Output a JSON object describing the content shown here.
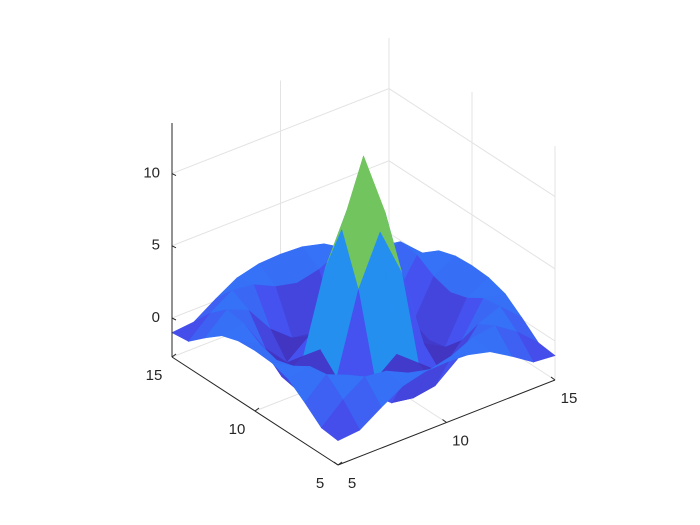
{
  "chart_data": {
    "type": "surface",
    "x": [
      5,
      6,
      7,
      8,
      9,
      10,
      11,
      12,
      13,
      14,
      15
    ],
    "y": [
      5,
      6,
      7,
      8,
      9,
      10,
      11,
      12,
      13,
      14,
      15
    ],
    "z": [
      [
        -1.01,
        -0.87,
        0.12,
        1.02,
        1.4,
        1.48,
        1.4,
        1.02,
        0.12,
        -0.87,
        -1.01
      ],
      [
        -0.87,
        0.48,
        1.48,
        1.29,
        0.57,
        0.22,
        0.57,
        1.29,
        1.48,
        0.48,
        -0.87
      ],
      [
        0.12,
        1.48,
        0.85,
        -1.03,
        -2.24,
        -2.49,
        -2.24,
        -1.03,
        0.85,
        1.48,
        0.12
      ],
      [
        1.02,
        1.29,
        -1.03,
        -2.61,
        -1.41,
        -0.22,
        -1.41,
        -2.61,
        -1.03,
        1.29,
        1.02
      ],
      [
        1.4,
        0.57,
        -2.24,
        -1.41,
        4.08,
        7.5,
        4.08,
        -1.41,
        -2.24,
        0.57,
        1.4
      ],
      [
        1.48,
        0.22,
        -2.49,
        -0.22,
        7.5,
        12,
        7.5,
        -0.22,
        -2.49,
        0.22,
        1.48
      ],
      [
        1.4,
        0.57,
        -2.24,
        -1.41,
        4.08,
        7.5,
        4.08,
        -1.41,
        -2.24,
        0.57,
        1.4
      ],
      [
        1.02,
        1.29,
        -1.03,
        -2.61,
        -1.41,
        -0.22,
        -1.41,
        -2.61,
        -1.03,
        1.29,
        1.02
      ],
      [
        0.12,
        1.48,
        0.85,
        -1.03,
        -2.24,
        -2.49,
        -2.24,
        -1.03,
        0.85,
        1.48,
        0.12
      ],
      [
        -0.87,
        0.48,
        1.48,
        1.29,
        0.57,
        0.22,
        0.57,
        1.29,
        1.48,
        0.48,
        -0.87
      ],
      [
        -1.01,
        -0.87,
        0.12,
        1.02,
        1.4,
        1.48,
        1.4,
        1.02,
        0.12,
        -0.87,
        -1.01
      ]
    ],
    "xlim": [
      5,
      15
    ],
    "ylim": [
      5,
      15
    ],
    "zlim": [
      -2.7,
      13.5
    ],
    "xticks": [
      5,
      10,
      15
    ],
    "yticks": [
      5,
      10,
      15
    ],
    "zticks": [
      0,
      5,
      10
    ],
    "grid": true,
    "colormap": "parula"
  }
}
